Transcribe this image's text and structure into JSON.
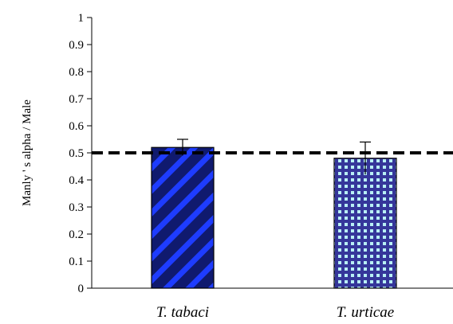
{
  "chart_data": {
    "type": "bar",
    "categories": [
      "T. tabaci",
      "T. urticae"
    ],
    "values": [
      0.52,
      0.48
    ],
    "errors": [
      0.03,
      0.06
    ],
    "ylabel": "Manly ' s alpha / Male",
    "xlabel": "",
    "ylim": [
      0,
      1
    ],
    "yticks": [
      "0",
      "0.1",
      "0.2",
      "0.3",
      "0.4",
      "0.5",
      "0.6",
      "0.7",
      "0.8",
      "0.9",
      "1"
    ],
    "reference_line": 0.5,
    "grid": false,
    "legend": "none",
    "bar_colors": [
      {
        "base": "#101a6e",
        "stripe": "#1e3cff"
      },
      {
        "base": "#35369a",
        "stripe": "#b8f0f5"
      }
    ]
  }
}
